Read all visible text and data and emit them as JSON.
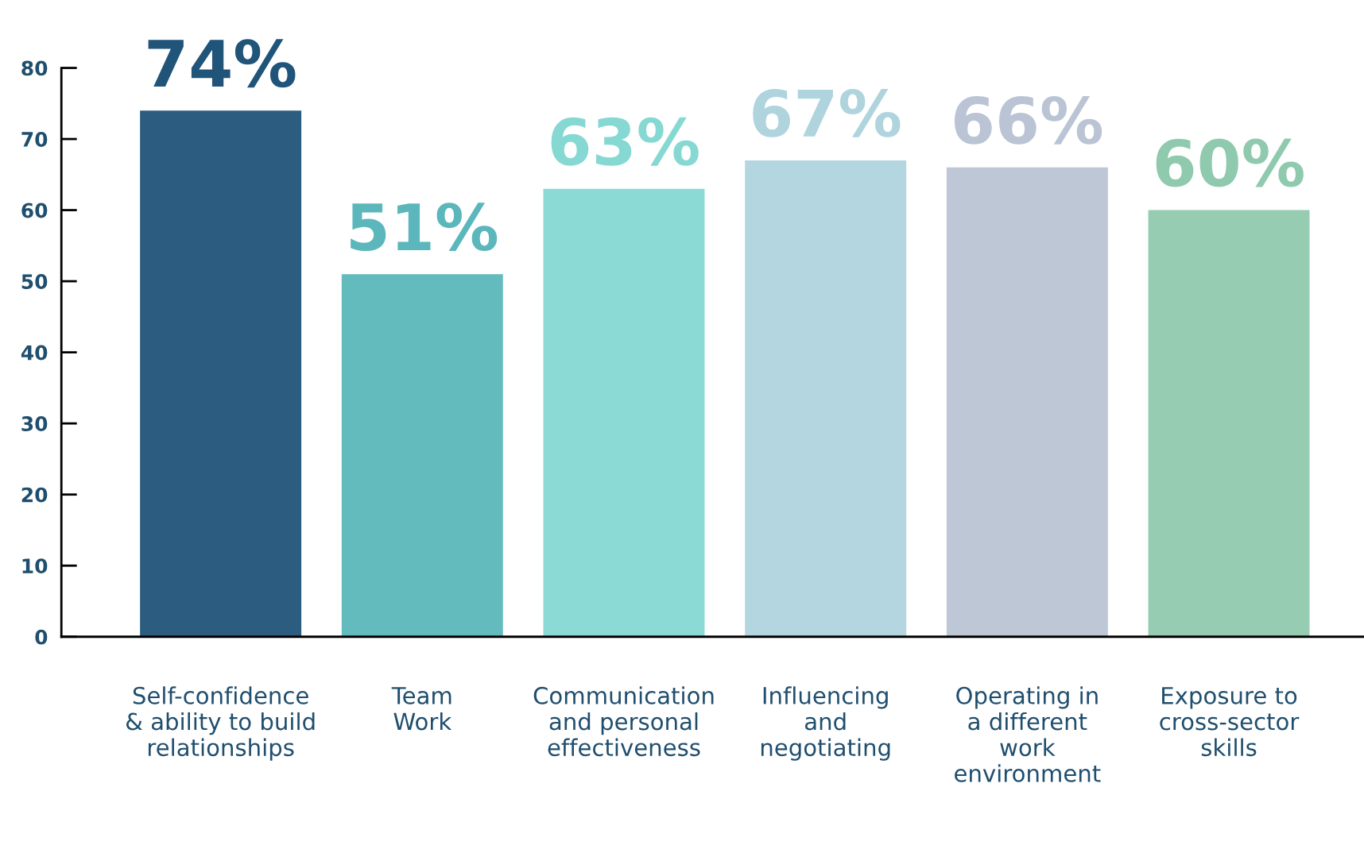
{
  "chart_data": {
    "type": "bar",
    "categories": [
      "Self-confidence\n& ability to build\nrelationships",
      "Team\nWork",
      "Communication\nand personal\neffectiveness",
      "Influencing\nand\nnegotiating",
      "Operating in\na different\nwork\nenvironment",
      "Exposure to\ncross-sector\nskills"
    ],
    "values": [
      74,
      51,
      63,
      67,
      66,
      60
    ],
    "colors": [
      "#215479",
      "#5bb7bb",
      "#86d8d3",
      "#afd4de",
      "#bac4d4",
      "#8fc9ae"
    ],
    "value_labels": [
      "74%",
      "51%",
      "63%",
      "67%",
      "66%",
      "60%"
    ],
    "ylim": [
      0,
      80
    ],
    "yticks": [
      0,
      10,
      20,
      30,
      40,
      50,
      60,
      70,
      80
    ],
    "grid": false,
    "legend": false
  }
}
